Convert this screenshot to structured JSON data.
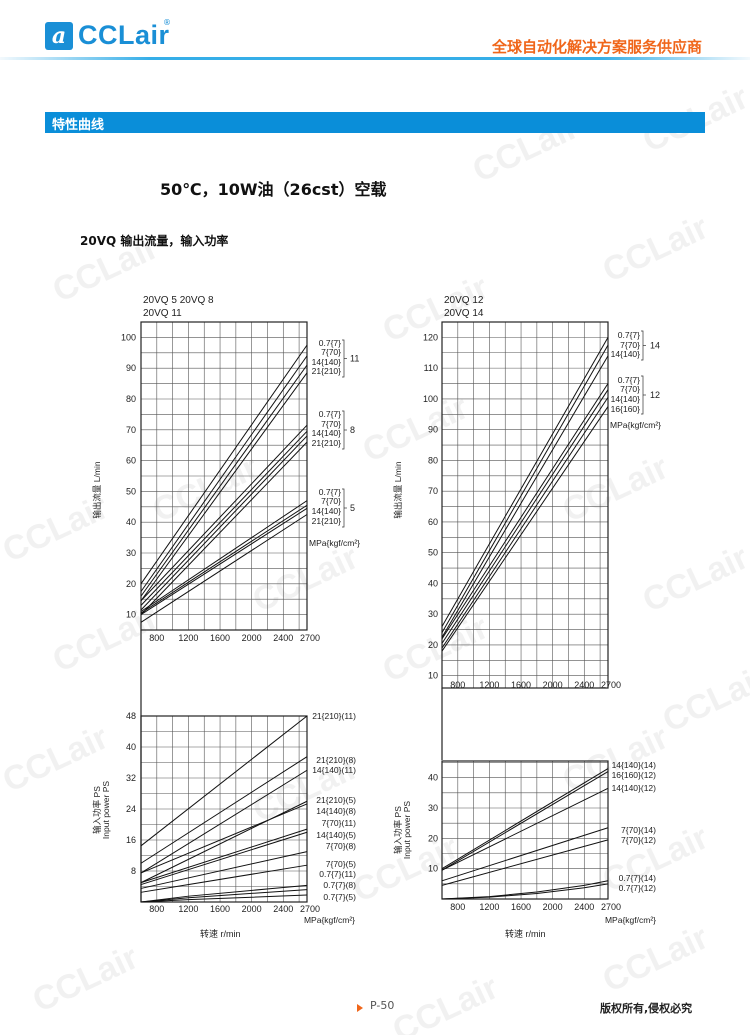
{
  "header": {
    "brand": "CCLair",
    "registered": "®",
    "logo_glyph": "a",
    "tagline": "全球自动化解决方案服务供应商"
  },
  "section_title": "特性曲线",
  "main_title": "50℃，10W油（26cst）空载",
  "subtitle": "20VQ 输出流量，输入功率",
  "footer": {
    "page": "P-50",
    "copyright": "版权所有,侵权必究"
  },
  "watermark": "CCLair",
  "colors": {
    "brand_blue": "#1a8fd6",
    "section_bar": "#0a8ed9",
    "accent_orange": "#f0661a"
  },
  "chart_data": [
    {
      "type": "line",
      "title_lines": [
        "20VQ 5  20VQ 8",
        "20VQ 11"
      ],
      "ylabel_lines": [
        "输出流量  L/min"
      ],
      "xlabel": "",
      "xlim": [
        600,
        2700
      ],
      "ylim": [
        5,
        105
      ],
      "xticks": [
        800,
        1200,
        1600,
        2000,
        2400,
        2700
      ],
      "yticks": [
        10,
        20,
        30,
        40,
        50,
        60,
        70,
        80,
        90,
        100
      ],
      "grid": true,
      "unit_label": "MPa{kgf/cm²}",
      "groups": [
        "11",
        "8",
        "5"
      ],
      "series": [
        {
          "name": "0.7{7}",
          "group": "11",
          "x": [
            600,
            2700
          ],
          "y": [
            20,
            97.5
          ]
        },
        {
          "name": "7{70}",
          "group": "11",
          "x": [
            600,
            2700
          ],
          "y": [
            17.5,
            94
          ]
        },
        {
          "name": "14{140}",
          "group": "11",
          "x": [
            600,
            2700
          ],
          "y": [
            16,
            91
          ]
        },
        {
          "name": "21{210}",
          "group": "11",
          "x": [
            600,
            2700
          ],
          "y": [
            14.5,
            88.5
          ]
        },
        {
          "name": "0.7{7}",
          "group": "8",
          "x": [
            600,
            2700
          ],
          "y": [
            14.5,
            71.5
          ]
        },
        {
          "name": "7{70}",
          "group": "8",
          "x": [
            600,
            2700
          ],
          "y": [
            13,
            69.5
          ]
        },
        {
          "name": "14{140}",
          "group": "8",
          "x": [
            600,
            2700
          ],
          "y": [
            11.5,
            68
          ]
        },
        {
          "name": "21{210}",
          "group": "8",
          "x": [
            600,
            2700
          ],
          "y": [
            10,
            66
          ]
        },
        {
          "name": "0.7{7}",
          "group": "5",
          "x": [
            600,
            2700
          ],
          "y": [
            11,
            47
          ]
        },
        {
          "name": "7{70}",
          "group": "5",
          "x": [
            600,
            2700
          ],
          "y": [
            10.5,
            45.5
          ]
        },
        {
          "name": "14{140}",
          "group": "5",
          "x": [
            600,
            2700
          ],
          "y": [
            10,
            44.5
          ]
        },
        {
          "name": "21{210}",
          "group": "5",
          "x": [
            600,
            2700
          ],
          "y": [
            7.5,
            42.5
          ]
        }
      ]
    },
    {
      "type": "line",
      "title_lines": [
        "20VQ 12",
        "20VQ 14"
      ],
      "ylabel_lines": [
        "输出流量  L/min"
      ],
      "xlabel": "",
      "xlim": [
        600,
        2700
      ],
      "ylim": [
        6,
        125
      ],
      "xticks": [
        800,
        1200,
        1600,
        2000,
        2400,
        2700
      ],
      "yticks": [
        10,
        20,
        30,
        40,
        50,
        60,
        70,
        80,
        90,
        100,
        110,
        120
      ],
      "grid": true,
      "unit_label": "MPa{kgf/cm²}",
      "groups": [
        "14",
        "12"
      ],
      "series": [
        {
          "name": "0.7{7}",
          "group": "14",
          "x": [
            600,
            2700
          ],
          "y": [
            26,
            120
          ]
        },
        {
          "name": "7{70}",
          "group": "14",
          "x": [
            600,
            2700
          ],
          "y": [
            24,
            117.5
          ]
        },
        {
          "name": "14{140}",
          "group": "14",
          "x": [
            600,
            2700
          ],
          "y": [
            22.5,
            114
          ]
        },
        {
          "name": "0.7{7}",
          "group": "12",
          "x": [
            600,
            2700
          ],
          "y": [
            22,
            105
          ]
        },
        {
          "name": "7{70}",
          "group": "12",
          "x": [
            600,
            2700
          ],
          "y": [
            20.5,
            103
          ]
        },
        {
          "name": "14{140}",
          "group": "12",
          "x": [
            600,
            2700
          ],
          "y": [
            19,
            100.5
          ]
        },
        {
          "name": "16{160}",
          "group": "12",
          "x": [
            600,
            2700
          ],
          "y": [
            18,
            97.5
          ]
        }
      ]
    },
    {
      "type": "line",
      "title_lines": [],
      "ylabel_lines": [
        "输入功率 PS",
        "Input power PS"
      ],
      "xlabel": "转速  r/min",
      "xlim": [
        600,
        2700
      ],
      "ylim": [
        0,
        48
      ],
      "xticks": [
        800,
        1200,
        1600,
        2000,
        2400,
        2700
      ],
      "yticks": [
        8,
        16,
        24,
        32,
        40,
        48
      ],
      "grid": true,
      "unit_label": "MPa{kgf/cm²}",
      "groups": [],
      "series": [
        {
          "name": "21{210}(11)",
          "x": [
            600,
            2700
          ],
          "y": [
            14.5,
            48
          ]
        },
        {
          "name": "21{210}(8)",
          "x": [
            600,
            2700
          ],
          "y": [
            10,
            37.5
          ]
        },
        {
          "name": "14{140}(11)",
          "x": [
            600,
            2700
          ],
          "y": [
            7.5,
            34
          ]
        },
        {
          "name": "21{210}(5)",
          "x": [
            600,
            2700
          ],
          "y": [
            5,
            26
          ]
        },
        {
          "name": "14{140}(8)",
          "x": [
            600,
            2700
          ],
          "y": [
            7.5,
            25.3
          ]
        },
        {
          "name": "7{70}(11)",
          "x": [
            600,
            2700
          ],
          "y": [
            5,
            18.8
          ]
        },
        {
          "name": "14{140}(5)",
          "x": [
            600,
            2700
          ],
          "y": [
            4.5,
            18
          ]
        },
        {
          "name": "7{70}(8)",
          "x": [
            600,
            2700
          ],
          "y": [
            3.5,
            13
          ]
        },
        {
          "name": "7{70}(5)",
          "x": [
            600,
            2700
          ],
          "y": [
            2.5,
            9.5
          ]
        },
        {
          "name": "0.7{7}(11)",
          "x": [
            600,
            1200,
            2700
          ],
          "y": [
            0,
            1.5,
            4.3
          ]
        },
        {
          "name": "0.7{7}(8)",
          "x": [
            600,
            1200,
            2700
          ],
          "y": [
            0,
            1.1,
            3.2
          ]
        },
        {
          "name": "0.7{7}(5)",
          "x": [
            600,
            1200,
            2700
          ],
          "y": [
            0,
            0.6,
            1.8
          ]
        }
      ]
    },
    {
      "type": "line",
      "title_lines": [],
      "ylabel_lines": [
        "输入功率  PS",
        "Input power PS"
      ],
      "xlabel": "转速  r/min",
      "xlim": [
        600,
        2700
      ],
      "ylim": [
        0,
        45.5
      ],
      "xticks": [
        800,
        1200,
        1600,
        2000,
        2400,
        2700
      ],
      "yticks": [
        10,
        20,
        30,
        40
      ],
      "grid": true,
      "unit_label": "MPa{kgf/cm²}",
      "groups": [],
      "series": [
        {
          "name": "14{140}(14)",
          "x": [
            600,
            2700
          ],
          "y": [
            10,
            43
          ]
        },
        {
          "name": "16{160}(12)",
          "x": [
            600,
            2700
          ],
          "y": [
            9.5,
            42
          ]
        },
        {
          "name": "14{140}(12)",
          "x": [
            600,
            2700
          ],
          "y": [
            9.5,
            36.5
          ]
        },
        {
          "name": "7{70}(14)",
          "x": [
            600,
            2700
          ],
          "y": [
            6,
            23.5
          ]
        },
        {
          "name": "7{70}(12)",
          "x": [
            600,
            2700
          ],
          "y": [
            4.5,
            19.5
          ]
        },
        {
          "name": "0.7{7}(14)",
          "x": [
            600,
            1200,
            1800,
            2400,
            2700
          ],
          "y": [
            0,
            0.8,
            2.3,
            4.5,
            6
          ]
        },
        {
          "name": "0.7{7}(12)",
          "x": [
            600,
            1200,
            1800,
            2400,
            2700
          ],
          "y": [
            0,
            0.6,
            1.8,
            3.7,
            5
          ]
        }
      ]
    }
  ]
}
